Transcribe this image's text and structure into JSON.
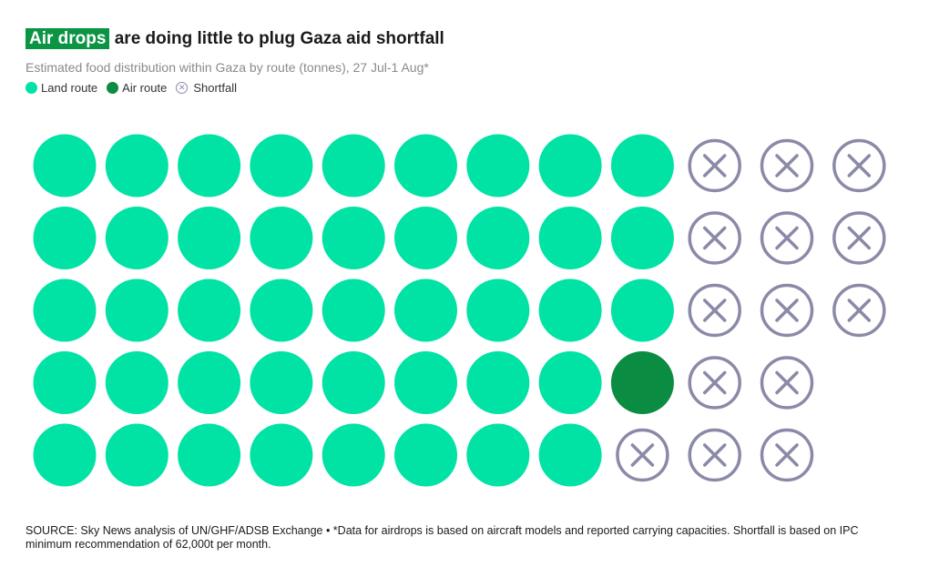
{
  "title": {
    "highlight": "Air drops",
    "rest": " are doing little to plug Gaza aid shortfall"
  },
  "subtitle": "Estimated food distribution within Gaza by route (tonnes), 27 Jul-1 Aug*",
  "legend": {
    "land": "Land route",
    "air": "Air route",
    "shortfall": "Shortfall"
  },
  "colors": {
    "land": "#00e3a4",
    "air": "#0b8c43",
    "shortfall": "#8a8aa8",
    "highlight": "#0b9444"
  },
  "source": "SOURCE: Sky News analysis of UN/GHF/ADSB Exchange • *Data for airdrops is based on aircraft models and reported carrying capacities. Shortfall is based on IPC minimum recommendation of 62,000t per month.",
  "chart_data": {
    "type": "waffle",
    "columns": 12,
    "rows": 5,
    "categories": [
      "Land route",
      "Air route",
      "Shortfall"
    ],
    "grid": [
      [
        "land",
        "land",
        "land",
        "land",
        "land",
        "land",
        "land",
        "land",
        "land",
        "shortfall",
        "shortfall",
        "shortfall"
      ],
      [
        "land",
        "land",
        "land",
        "land",
        "land",
        "land",
        "land",
        "land",
        "land",
        "shortfall",
        "shortfall",
        "shortfall"
      ],
      [
        "land",
        "land",
        "land",
        "land",
        "land",
        "land",
        "land",
        "land",
        "land",
        "shortfall",
        "shortfall",
        "shortfall"
      ],
      [
        "land",
        "land",
        "land",
        "land",
        "land",
        "land",
        "land",
        "land",
        "air",
        "shortfall",
        "shortfall",
        null
      ],
      [
        "land",
        "land",
        "land",
        "land",
        "land",
        "land",
        "land",
        "land",
        "shortfall",
        "shortfall",
        "shortfall",
        null
      ]
    ],
    "counts": {
      "land": 43,
      "air": 1,
      "shortfall": 14
    }
  }
}
